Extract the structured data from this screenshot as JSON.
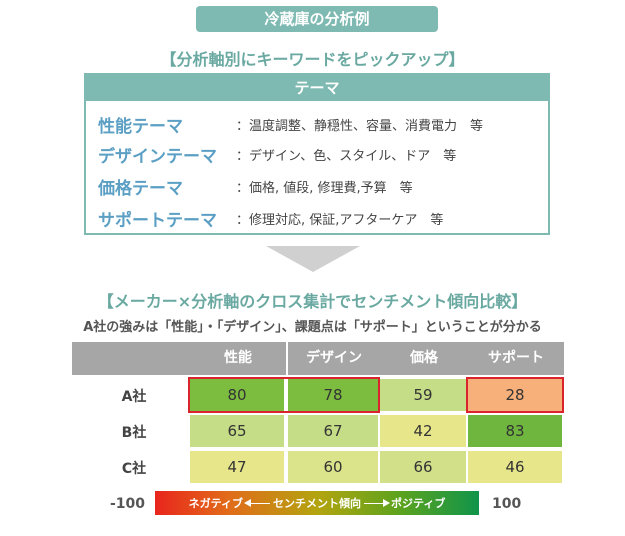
{
  "title": "冷蔵庫の分析例",
  "section1_heading": "【分析軸別にキーワードをピックアップ】",
  "theme_box": {
    "header": "テーマ",
    "rows": [
      {
        "name": "性能テーマ",
        "keywords": "：温度調整、静穏性、容量、消費電力　等"
      },
      {
        "name": "デザインテーマ",
        "keywords": "：デザイン、色、スタイル、ドア　等"
      },
      {
        "name": "価格テーマ",
        "keywords": "：価格, 値段, 修理費,予算　等"
      },
      {
        "name": "サポートテーマ",
        "keywords": "：修理対応, 保証,アフターケア　等"
      }
    ]
  },
  "section2_heading": "【メーカー×分析軸のクロス集計でセンチメント傾向比較】",
  "summary": "A社の強みは「性能」・「デザイン」、課題点は「サポート」ということが分かる",
  "chart_data": {
    "type": "heatmap",
    "columns": [
      "性能",
      "デザイン",
      "価格",
      "サポート"
    ],
    "rows": [
      "A社",
      "B社",
      "C社"
    ],
    "values": [
      [
        80,
        78,
        59,
        28
      ],
      [
        65,
        67,
        42,
        83
      ],
      [
        47,
        60,
        66,
        46
      ]
    ],
    "highlighted": [
      [
        0,
        0
      ],
      [
        0,
        1
      ],
      [
        0,
        3
      ]
    ],
    "scale": {
      "min_label": "-100",
      "max_label": "100",
      "negative": "ネガティブ",
      "label": "センチメント傾向",
      "positive": "ポジティブ"
    }
  },
  "colors": {
    "teal": "#7fbab2",
    "header_gray": "#a6a6a6",
    "highlight_border": "#d9232d",
    "cells": [
      [
        "#7cbc3f",
        "#7cbc3f",
        "#c6dd87",
        "#f8b07a"
      ],
      [
        "#c6dd87",
        "#c6dd87",
        "#e8e68a",
        "#6fb63e"
      ],
      [
        "#e8e68a",
        "#dbe48a",
        "#d2e08a",
        "#e8e68a"
      ]
    ]
  }
}
